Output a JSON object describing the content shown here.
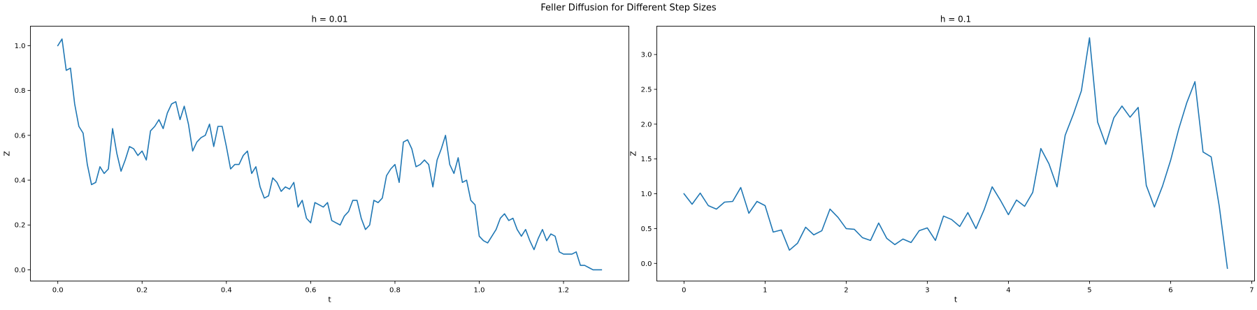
{
  "figure": {
    "suptitle": "Feller Diffusion for Different Step Sizes",
    "line_color": "#1f77b4"
  },
  "chart_data": [
    {
      "type": "line",
      "title": "h = 0.01",
      "xlabel": "t",
      "ylabel": "Z",
      "xlim": [
        -0.065,
        1.355
      ],
      "ylim": [
        -0.05,
        1.087
      ],
      "xticks": [
        0.0,
        0.2,
        0.4,
        0.6,
        0.8,
        1.0,
        1.2
      ],
      "xtick_labels": [
        "0.0",
        "0.2",
        "0.4",
        "0.6",
        "0.8",
        "1.0",
        "1.2"
      ],
      "yticks": [
        0.0,
        0.2,
        0.4,
        0.6,
        0.8,
        1.0
      ],
      "ytick_labels": [
        "0.0",
        "0.2",
        "0.4",
        "0.6",
        "0.8",
        "1.0"
      ],
      "grid": false,
      "series": [
        {
          "x": [
            0.0,
            0.01,
            0.02,
            0.03,
            0.04,
            0.05,
            0.06,
            0.07,
            0.08,
            0.09,
            0.1,
            0.11,
            0.12,
            0.13,
            0.14,
            0.15,
            0.16,
            0.17,
            0.18,
            0.19,
            0.2,
            0.21,
            0.22,
            0.23,
            0.24,
            0.25,
            0.26,
            0.27,
            0.28,
            0.29,
            0.3,
            0.31,
            0.32,
            0.33,
            0.34,
            0.35,
            0.36,
            0.37,
            0.38,
            0.39,
            0.4,
            0.41,
            0.42,
            0.43,
            0.44,
            0.45,
            0.46,
            0.47,
            0.48,
            0.49,
            0.5,
            0.51,
            0.52,
            0.53,
            0.54,
            0.55,
            0.56,
            0.57,
            0.58,
            0.59,
            0.6,
            0.61,
            0.62,
            0.63,
            0.64,
            0.65,
            0.66,
            0.67,
            0.68,
            0.69,
            0.7,
            0.71,
            0.72,
            0.73,
            0.74,
            0.75,
            0.76,
            0.77,
            0.78,
            0.79,
            0.8,
            0.81,
            0.82,
            0.83,
            0.84,
            0.85,
            0.86,
            0.87,
            0.88,
            0.89,
            0.9,
            0.91,
            0.92,
            0.93,
            0.94,
            0.95,
            0.96,
            0.97,
            0.98,
            0.99,
            1.0,
            1.01,
            1.02,
            1.03,
            1.04,
            1.05,
            1.06,
            1.07,
            1.08,
            1.09,
            1.1,
            1.11,
            1.12,
            1.13,
            1.14,
            1.15,
            1.16,
            1.17,
            1.18,
            1.19,
            1.2,
            1.21,
            1.22,
            1.23,
            1.24,
            1.25,
            1.26,
            1.27,
            1.28,
            1.29
          ],
          "y": [
            1.0,
            1.03,
            0.89,
            0.9,
            0.74,
            0.64,
            0.61,
            0.47,
            0.38,
            0.39,
            0.46,
            0.43,
            0.45,
            0.63,
            0.52,
            0.44,
            0.49,
            0.55,
            0.54,
            0.51,
            0.53,
            0.49,
            0.62,
            0.64,
            0.67,
            0.63,
            0.7,
            0.74,
            0.75,
            0.67,
            0.73,
            0.65,
            0.53,
            0.57,
            0.59,
            0.6,
            0.65,
            0.55,
            0.64,
            0.64,
            0.55,
            0.45,
            0.47,
            0.47,
            0.51,
            0.53,
            0.43,
            0.46,
            0.37,
            0.32,
            0.33,
            0.41,
            0.39,
            0.35,
            0.37,
            0.36,
            0.39,
            0.28,
            0.31,
            0.23,
            0.21,
            0.3,
            0.29,
            0.28,
            0.3,
            0.22,
            0.21,
            0.2,
            0.24,
            0.26,
            0.31,
            0.31,
            0.23,
            0.18,
            0.2,
            0.31,
            0.3,
            0.32,
            0.42,
            0.45,
            0.47,
            0.39,
            0.57,
            0.58,
            0.54,
            0.46,
            0.47,
            0.49,
            0.47,
            0.37,
            0.49,
            0.54,
            0.6,
            0.47,
            0.43,
            0.5,
            0.39,
            0.4,
            0.31,
            0.29,
            0.15,
            0.13,
            0.12,
            0.15,
            0.18,
            0.23,
            0.25,
            0.22,
            0.23,
            0.18,
            0.15,
            0.18,
            0.13,
            0.09,
            0.14,
            0.18,
            0.13,
            0.16,
            0.15,
            0.08,
            0.07,
            0.07,
            0.07,
            0.08,
            0.02,
            0.02,
            0.01,
            0.0,
            0.0,
            0.0
          ]
        }
      ]
    },
    {
      "type": "line",
      "title": "h = 0.1",
      "xlabel": "t",
      "ylabel": "Z",
      "xlim": [
        -0.335,
        7.035
      ],
      "ylim": [
        -0.253,
        3.407
      ],
      "xticks": [
        0,
        1,
        2,
        3,
        4,
        5,
        6,
        7
      ],
      "xtick_labels": [
        "0",
        "1",
        "2",
        "3",
        "4",
        "5",
        "6",
        "7"
      ],
      "yticks": [
        0.0,
        0.5,
        1.0,
        1.5,
        2.0,
        2.5,
        3.0
      ],
      "ytick_labels": [
        "0.0",
        "0.5",
        "1.0",
        "1.5",
        "2.0",
        "2.5",
        "3.0"
      ],
      "grid": false,
      "series": [
        {
          "x": [
            0.0,
            0.1,
            0.2,
            0.3,
            0.4,
            0.5,
            0.6,
            0.7,
            0.8,
            0.9,
            1.0,
            1.1,
            1.2,
            1.3,
            1.4,
            1.5,
            1.6,
            1.7,
            1.8,
            1.9,
            2.0,
            2.1,
            2.2,
            2.3,
            2.4,
            2.5,
            2.6,
            2.7,
            2.8,
            2.9,
            3.0,
            3.1,
            3.2,
            3.3,
            3.4,
            3.5,
            3.6,
            3.7,
            3.8,
            3.9,
            4.0,
            4.1,
            4.2,
            4.3,
            4.4,
            4.5,
            4.6,
            4.7,
            4.8,
            4.9,
            5.0,
            5.1,
            5.2,
            5.3,
            5.4,
            5.5,
            5.6,
            5.7,
            5.8,
            5.9,
            6.0,
            6.1,
            6.2,
            6.3,
            6.4,
            6.5,
            6.6,
            6.7
          ],
          "y": [
            1.0,
            0.85,
            1.01,
            0.83,
            0.78,
            0.88,
            0.89,
            1.09,
            0.72,
            0.89,
            0.83,
            0.45,
            0.48,
            0.19,
            0.29,
            0.52,
            0.41,
            0.47,
            0.78,
            0.66,
            0.5,
            0.49,
            0.37,
            0.33,
            0.58,
            0.36,
            0.27,
            0.35,
            0.3,
            0.47,
            0.51,
            0.33,
            0.68,
            0.63,
            0.53,
            0.73,
            0.5,
            0.77,
            1.1,
            0.91,
            0.7,
            0.91,
            0.82,
            1.02,
            1.65,
            1.43,
            1.1,
            1.84,
            2.14,
            2.48,
            3.24,
            2.03,
            1.71,
            2.09,
            2.26,
            2.1,
            2.24,
            1.12,
            0.81,
            1.11,
            1.48,
            1.93,
            2.31,
            2.61,
            1.6,
            1.53,
            0.82,
            -0.07
          ]
        }
      ]
    }
  ]
}
